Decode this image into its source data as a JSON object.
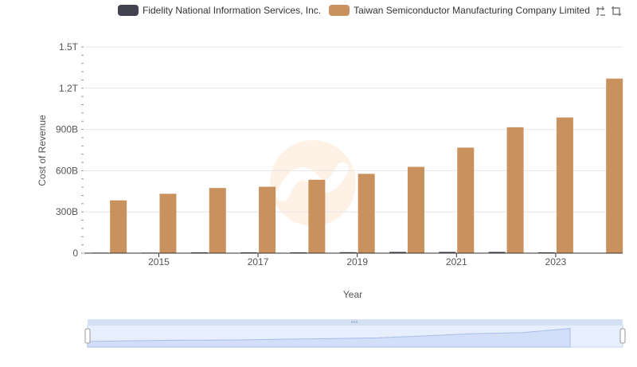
{
  "colors": {
    "fis": "#434350",
    "tsmc": "#c9915d",
    "grid": "#e6e6e6",
    "axis": "#333333",
    "text": "#555555",
    "slider_fill": "#dbe5f8",
    "slider_line": "#a9bdea"
  },
  "toolbar": {
    "zoom_icon": "zoom-cross-icon",
    "restore_icon": "restore-icon"
  },
  "chart_data": {
    "type": "bar",
    "x": [
      2014,
      2015,
      2016,
      2017,
      2018,
      2019,
      2020,
      2021,
      2022,
      2023,
      2024
    ],
    "x_tick_labels": [
      "2015",
      "2017",
      "2019",
      "2021",
      "2023"
    ],
    "x_tick_values": [
      2015,
      2017,
      2019,
      2021,
      2023
    ],
    "xlabel": "Year",
    "ylabel": "Cost of Revenue",
    "ylim": [
      0,
      1500000000000
    ],
    "y_ticks": [
      0,
      300000000000,
      600000000000,
      900000000000,
      1200000000000,
      1500000000000
    ],
    "y_tick_labels": [
      "0",
      "300B",
      "600B",
      "900B",
      "1.2T",
      "1.5T"
    ],
    "grid": true,
    "legend_position": "top",
    "series": [
      {
        "name": "Fidelity National Information Services, Inc.",
        "color": "#434350",
        "values": [
          4000000000,
          4000000000,
          6000000000,
          6000000000,
          6000000000,
          7000000000,
          9000000000,
          9000000000,
          9000000000,
          6000000000,
          null
        ]
      },
      {
        "name": "Taiwan Semiconductor Manufacturing Company Limited",
        "color": "#c9915d",
        "values": [
          384000000000,
          432000000000,
          474000000000,
          483000000000,
          534000000000,
          577000000000,
          628000000000,
          768000000000,
          916000000000,
          987000000000,
          1270000000000
        ]
      }
    ]
  }
}
